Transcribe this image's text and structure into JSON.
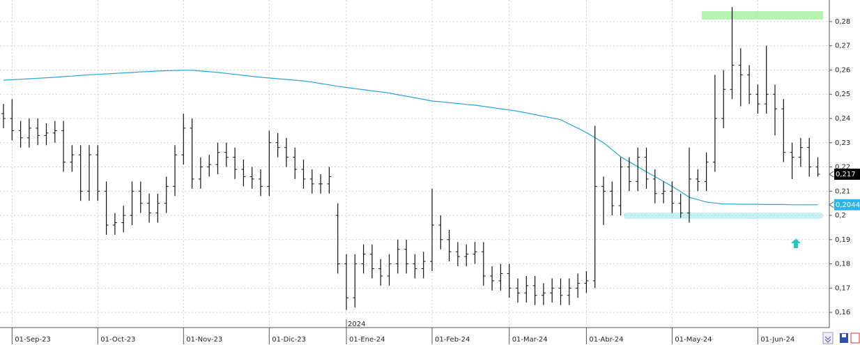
{
  "chart_data": {
    "type": "ohlc",
    "bar_color": "#111111",
    "ylim": [
      0.1537,
      0.2889
    ],
    "yticks": [
      {
        "value": 0.16,
        "label": "0,16"
      },
      {
        "value": 0.17,
        "label": "0,17"
      },
      {
        "value": 0.18,
        "label": "0,18"
      },
      {
        "value": 0.19,
        "label": "0,19"
      },
      {
        "value": 0.2,
        "label": "0,2"
      },
      {
        "value": 0.21,
        "label": "0,21"
      },
      {
        "value": 0.22,
        "label": "0,22"
      },
      {
        "value": 0.23,
        "label": "0,23"
      },
      {
        "value": 0.24,
        "label": "0,24"
      },
      {
        "value": 0.25,
        "label": "0,25"
      },
      {
        "value": 0.26,
        "label": "0,26"
      },
      {
        "value": 0.27,
        "label": "0,27"
      },
      {
        "value": 0.28,
        "label": "0,28"
      }
    ],
    "grid": true,
    "year_marker": "2024",
    "categories": [
      null,
      "01-Sep-23",
      null,
      null,
      null,
      null,
      null,
      null,
      null,
      null,
      null,
      "01-Oct-23",
      null,
      null,
      null,
      null,
      null,
      null,
      null,
      null,
      null,
      "01-Nov-23",
      null,
      null,
      null,
      null,
      null,
      null,
      null,
      null,
      null,
      "01-Dic-23",
      null,
      null,
      null,
      null,
      null,
      null,
      null,
      null,
      "01-Ene-24",
      null,
      null,
      null,
      null,
      null,
      null,
      null,
      null,
      null,
      "01-Feb-24",
      null,
      null,
      null,
      null,
      null,
      null,
      null,
      null,
      "01-Mar-24",
      null,
      null,
      null,
      null,
      null,
      null,
      null,
      null,
      "01-Abr-24",
      null,
      null,
      null,
      null,
      null,
      null,
      null,
      null,
      null,
      "01-May-24",
      null,
      null,
      null,
      null,
      null,
      null,
      null,
      null,
      null,
      "01-Jun-24",
      null,
      null,
      null,
      null,
      null,
      null,
      null
    ],
    "open": [
      0.242,
      0.24,
      0.235,
      0.232,
      0.236,
      0.233,
      0.234,
      0.235,
      0.222,
      0.225,
      0.21,
      0.225,
      0.21,
      0.196,
      0.197,
      0.2,
      0.21,
      0.205,
      0.201,
      0.205,
      0.212,
      0.225,
      0.236,
      0.215,
      0.22,
      0.221,
      0.226,
      0.224,
      0.219,
      0.216,
      0.215,
      0.212,
      0.23,
      0.228,
      0.224,
      0.219,
      0.215,
      0.213,
      0.213,
      0.2,
      0.18,
      0.166,
      0.18,
      0.184,
      0.178,
      0.175,
      0.18,
      0.186,
      0.18,
      0.178,
      0.181,
      0.196,
      0.19,
      0.185,
      0.183,
      0.184,
      0.185,
      0.175,
      0.173,
      0.176,
      0.17,
      0.168,
      0.171,
      0.167,
      0.168,
      0.17,
      0.167,
      0.17,
      0.172,
      0.173,
      0.212,
      0.21,
      0.204,
      0.22,
      0.214,
      0.224,
      0.215,
      0.209,
      0.21,
      0.205,
      0.201,
      0.215,
      0.214,
      0.222,
      0.24,
      0.252,
      0.262,
      0.258,
      0.25,
      0.246,
      0.25,
      0.244,
      0.226,
      0.224,
      0.228,
      0.22
    ],
    "high": [
      0.246,
      0.248,
      0.239,
      0.24,
      0.24,
      0.238,
      0.239,
      0.239,
      0.229,
      0.229,
      0.229,
      0.229,
      0.214,
      0.201,
      0.204,
      0.214,
      0.214,
      0.209,
      0.209,
      0.216,
      0.229,
      0.242,
      0.24,
      0.224,
      0.225,
      0.23,
      0.23,
      0.228,
      0.223,
      0.22,
      0.219,
      0.235,
      0.234,
      0.232,
      0.228,
      0.223,
      0.219,
      0.217,
      0.22,
      0.205,
      0.184,
      0.184,
      0.188,
      0.188,
      0.182,
      0.184,
      0.19,
      0.19,
      0.184,
      0.185,
      0.211,
      0.2,
      0.194,
      0.189,
      0.188,
      0.189,
      0.189,
      0.179,
      0.18,
      0.18,
      0.174,
      0.175,
      0.175,
      0.172,
      0.174,
      0.174,
      0.174,
      0.176,
      0.177,
      0.237,
      0.216,
      0.214,
      0.224,
      0.224,
      0.228,
      0.228,
      0.219,
      0.214,
      0.214,
      0.209,
      0.228,
      0.219,
      0.226,
      0.258,
      0.26,
      0.286,
      0.269,
      0.262,
      0.254,
      0.27,
      0.254,
      0.248,
      0.23,
      0.232,
      0.232,
      0.224
    ],
    "low": [
      0.236,
      0.231,
      0.228,
      0.228,
      0.229,
      0.229,
      0.23,
      0.218,
      0.218,
      0.206,
      0.206,
      0.206,
      0.192,
      0.192,
      0.193,
      0.196,
      0.201,
      0.197,
      0.197,
      0.201,
      0.208,
      0.221,
      0.211,
      0.211,
      0.216,
      0.217,
      0.22,
      0.215,
      0.212,
      0.211,
      0.208,
      0.208,
      0.224,
      0.22,
      0.215,
      0.211,
      0.209,
      0.209,
      0.209,
      0.176,
      0.161,
      0.162,
      0.176,
      0.174,
      0.171,
      0.171,
      0.176,
      0.176,
      0.174,
      0.174,
      0.177,
      0.186,
      0.181,
      0.179,
      0.179,
      0.18,
      0.171,
      0.169,
      0.169,
      0.166,
      0.164,
      0.164,
      0.163,
      0.163,
      0.164,
      0.163,
      0.163,
      0.166,
      0.168,
      0.17,
      0.196,
      0.2,
      0.2,
      0.21,
      0.21,
      0.211,
      0.205,
      0.205,
      0.201,
      0.199,
      0.197,
      0.21,
      0.21,
      0.218,
      0.236,
      0.248,
      0.245,
      0.246,
      0.242,
      0.242,
      0.233,
      0.222,
      0.215,
      0.22,
      0.216,
      0.216
    ],
    "close": [
      0.24,
      0.235,
      0.232,
      0.236,
      0.233,
      0.234,
      0.235,
      0.222,
      0.225,
      0.21,
      0.225,
      0.21,
      0.196,
      0.197,
      0.2,
      0.21,
      0.205,
      0.201,
      0.205,
      0.212,
      0.225,
      0.236,
      0.215,
      0.22,
      0.221,
      0.226,
      0.224,
      0.219,
      0.216,
      0.215,
      0.212,
      0.23,
      0.228,
      0.224,
      0.219,
      0.215,
      0.213,
      0.213,
      0.216,
      0.18,
      0.166,
      0.18,
      0.184,
      0.178,
      0.175,
      0.18,
      0.186,
      0.18,
      0.178,
      0.181,
      0.196,
      0.19,
      0.185,
      0.183,
      0.184,
      0.185,
      0.175,
      0.173,
      0.176,
      0.17,
      0.168,
      0.171,
      0.167,
      0.168,
      0.17,
      0.167,
      0.17,
      0.172,
      0.173,
      0.212,
      0.21,
      0.204,
      0.22,
      0.214,
      0.224,
      0.215,
      0.209,
      0.21,
      0.205,
      0.201,
      0.215,
      0.214,
      0.222,
      0.24,
      0.252,
      0.262,
      0.258,
      0.25,
      0.246,
      0.25,
      0.244,
      0.226,
      0.224,
      0.228,
      0.22,
      0.217
    ],
    "moving_average": {
      "color": "#22a6d8",
      "values": [
        0.2558,
        0.256,
        0.2562,
        0.2564,
        0.2566,
        0.2568,
        0.257,
        0.2573,
        0.2575,
        0.2578,
        0.258,
        0.2582,
        0.2584,
        0.2586,
        0.2588,
        0.259,
        0.2592,
        0.2594,
        0.2596,
        0.2597,
        0.2598,
        0.2599,
        0.2599,
        0.2596,
        0.2593,
        0.259,
        0.2586,
        0.2582,
        0.2578,
        0.2574,
        0.257,
        0.2567,
        0.2564,
        0.2561,
        0.2558,
        0.2555,
        0.255,
        0.2544,
        0.2539,
        0.2533,
        0.2528,
        0.2523,
        0.2519,
        0.2514,
        0.251,
        0.2505,
        0.2498,
        0.2492,
        0.2485,
        0.2479,
        0.2472,
        0.2469,
        0.2465,
        0.2462,
        0.2458,
        0.2455,
        0.245,
        0.2445,
        0.244,
        0.2435,
        0.243,
        0.2423,
        0.2416,
        0.2409,
        0.2402,
        0.2395,
        0.2377,
        0.236,
        0.2342,
        0.2321,
        0.23,
        0.2271,
        0.2242,
        0.2221,
        0.2201,
        0.218,
        0.216,
        0.214,
        0.212,
        0.2098,
        0.2075,
        0.2065,
        0.2055,
        0.2051,
        0.2047,
        0.2047,
        0.2046,
        0.2046,
        0.2046,
        0.2045,
        0.2045,
        0.2045,
        0.2044,
        0.2044,
        0.2044,
        0.2044
      ]
    },
    "last_price_label": {
      "value": 0.217,
      "label": "0,217",
      "color": "#000000"
    },
    "ma_label": {
      "value": 0.2044,
      "label": "0,2044",
      "color": "#29b6e8"
    }
  }
}
